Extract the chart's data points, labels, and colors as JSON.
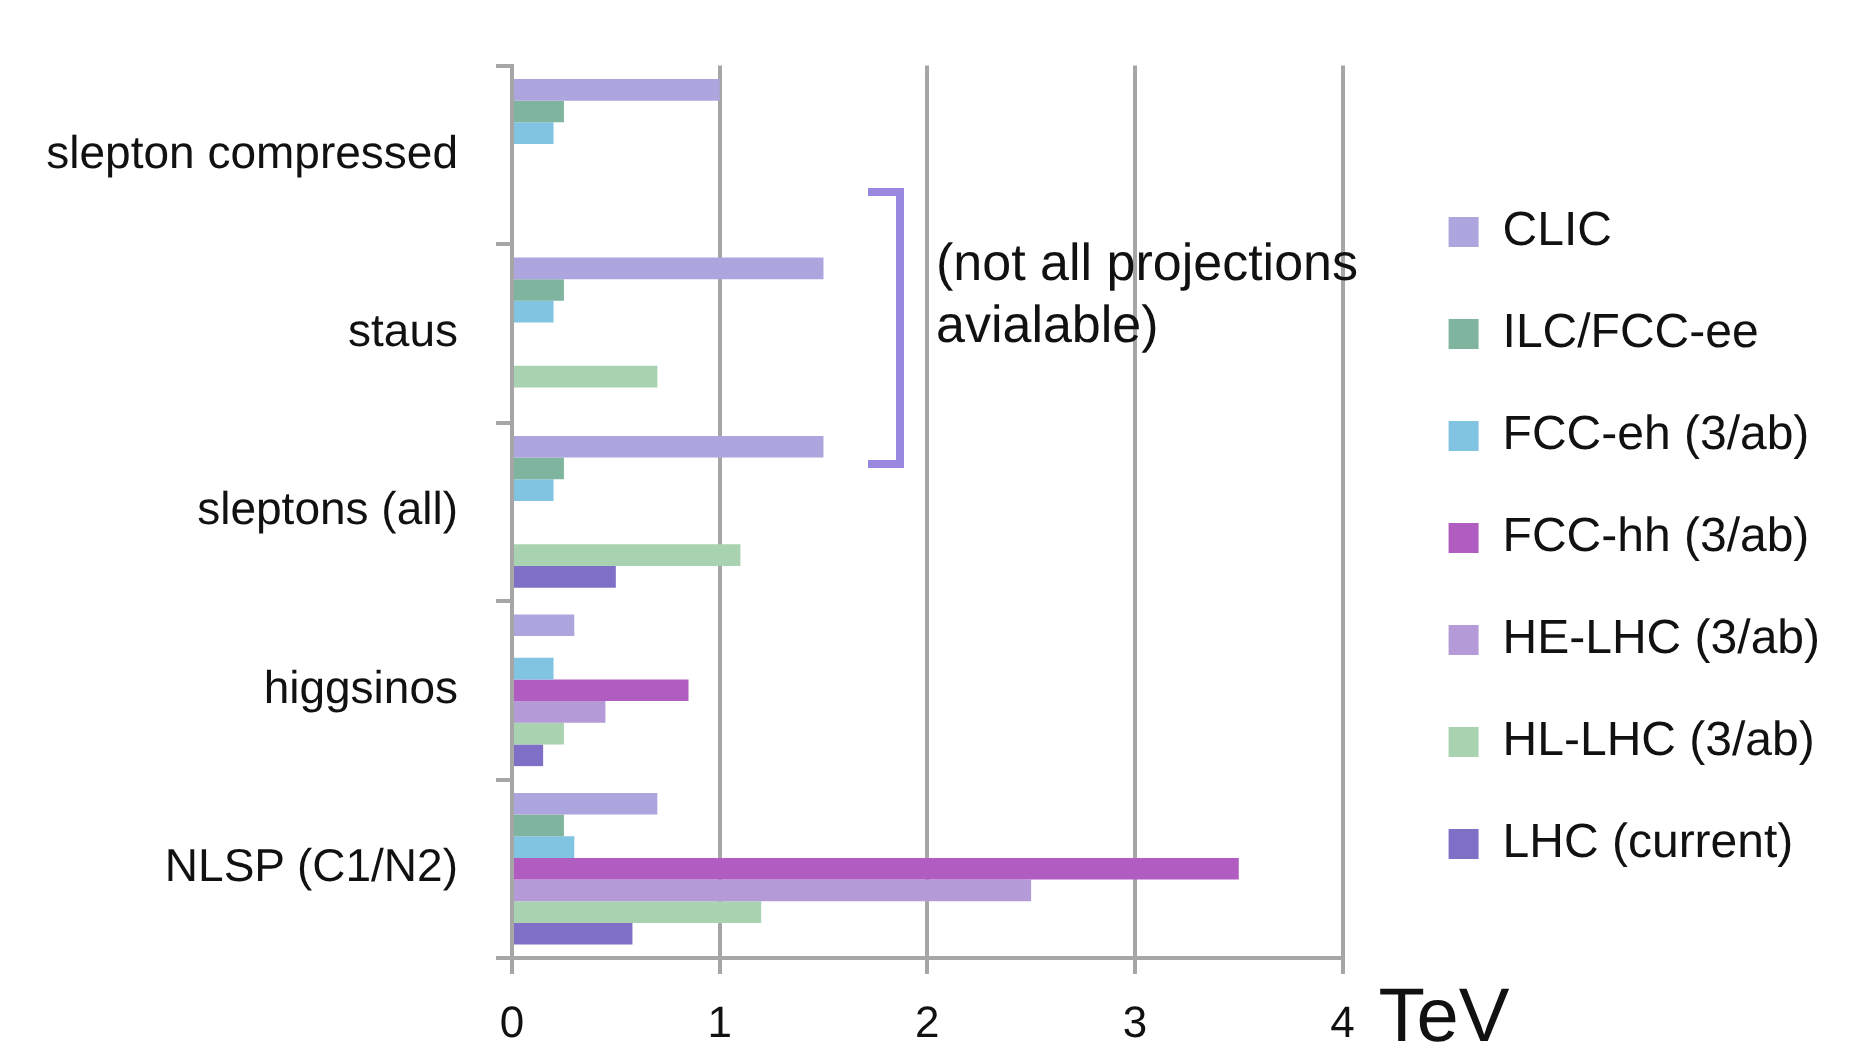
{
  "chart_data": {
    "type": "bar",
    "orientation": "horizontal",
    "categories": [
      "slepton compressed",
      "staus",
      "sleptons (all)",
      "higgsinos",
      "NLSP (C1/N2)"
    ],
    "series": [
      {
        "name": "CLIC",
        "color": "#ada5dd",
        "values": [
          1.0,
          1.5,
          1.5,
          0.3,
          0.7
        ]
      },
      {
        "name": "ILC/FCC-ee",
        "color": "#7fb49f",
        "values": [
          0.25,
          0.25,
          0.25,
          null,
          0.25
        ]
      },
      {
        "name": "FCC-eh (3/ab)",
        "color": "#80c4e2",
        "values": [
          0.2,
          0.2,
          0.2,
          0.2,
          0.3
        ]
      },
      {
        "name": "FCC-hh (3/ab)",
        "color": "#b05cc0",
        "values": [
          null,
          null,
          null,
          0.85,
          3.5
        ]
      },
      {
        "name": "HE-LHC (3/ab)",
        "color": "#b49ad6",
        "values": [
          null,
          null,
          null,
          0.45,
          2.5
        ]
      },
      {
        "name": "HL-LHC (3/ab)",
        "color": "#a9d2b1",
        "values": [
          null,
          0.7,
          1.1,
          0.25,
          1.2
        ]
      },
      {
        "name": "LHC (current)",
        "color": "#7f6fc6",
        "values": [
          null,
          null,
          0.5,
          0.15,
          0.58
        ]
      }
    ],
    "xlabel": "TeV",
    "xlim": [
      0,
      4
    ],
    "xticks": [
      0,
      1,
      2,
      3,
      4
    ],
    "grid": "x",
    "legend": "right",
    "annotations": [
      "(not all projections avialable)"
    ]
  }
}
